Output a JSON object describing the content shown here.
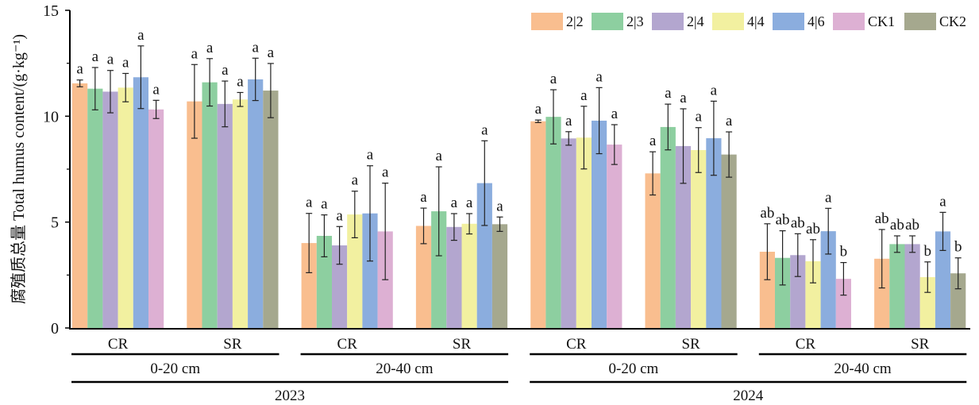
{
  "chart_data": {
    "type": "bar",
    "title": "",
    "ylabel": "腐殖质总量 Total humus content/(g·kg⁻¹)",
    "xlabel": "",
    "ylim": [
      0,
      15
    ],
    "yticks": [
      0,
      5,
      10,
      15
    ],
    "yticks_minor": [
      2.5,
      7.5,
      12.5
    ],
    "grid": false,
    "legend_position": "top-right",
    "legend": [
      {
        "name": "2|2",
        "color": "#F9BE8F"
      },
      {
        "name": "2|3",
        "color": "#8DCFA0"
      },
      {
        "name": "2|4",
        "color": "#B3A6CF"
      },
      {
        "name": "4|4",
        "color": "#F2F0A0"
      },
      {
        "name": "4|6",
        "color": "#8BADDE"
      },
      {
        "name": "CK1",
        "color": "#DDB0D3"
      },
      {
        "name": "CK2",
        "color": "#A5A88E"
      }
    ],
    "groups": [
      {
        "year": "2023",
        "depth": "0-20 cm",
        "type": "CR",
        "bars": [
          {
            "series": "2|2",
            "value": 11.55,
            "err": 0.16,
            "letter": "a"
          },
          {
            "series": "2|3",
            "value": 11.3,
            "err": 1.0,
            "letter": "a"
          },
          {
            "series": "2|4",
            "value": 11.16,
            "err": 1.0,
            "letter": "a"
          },
          {
            "series": "4|4",
            "value": 11.35,
            "err": 0.67,
            "letter": "a"
          },
          {
            "series": "4|6",
            "value": 11.84,
            "err": 1.48,
            "letter": "a"
          },
          {
            "series": "CK1",
            "value": 10.32,
            "err": 0.43,
            "letter": "a"
          }
        ]
      },
      {
        "year": "2023",
        "depth": "0-20 cm",
        "type": "SR",
        "bars": [
          {
            "series": "2|2",
            "value": 10.7,
            "err": 1.74,
            "letter": "a"
          },
          {
            "series": "2|3",
            "value": 11.6,
            "err": 1.12,
            "letter": "a"
          },
          {
            "series": "2|4",
            "value": 10.58,
            "err": 1.08,
            "letter": "a"
          },
          {
            "series": "4|4",
            "value": 10.79,
            "err": 0.33,
            "letter": "a"
          },
          {
            "series": "4|6",
            "value": 11.74,
            "err": 1.0,
            "letter": "a"
          },
          {
            "series": "CK2",
            "value": 11.21,
            "err": 1.28,
            "letter": "a"
          }
        ]
      },
      {
        "year": "2023",
        "depth": "20-40 cm",
        "type": "CR",
        "bars": [
          {
            "series": "2|2",
            "value": 4.01,
            "err": 1.4,
            "letter": "a"
          },
          {
            "series": "2|3",
            "value": 4.35,
            "err": 0.99,
            "letter": "a"
          },
          {
            "series": "2|4",
            "value": 3.9,
            "err": 0.89,
            "letter": "a"
          },
          {
            "series": "4|4",
            "value": 5.36,
            "err": 1.1,
            "letter": "a"
          },
          {
            "series": "4|6",
            "value": 5.41,
            "err": 2.25,
            "letter": "a"
          },
          {
            "series": "CK1",
            "value": 4.56,
            "err": 2.28,
            "letter": "a"
          }
        ]
      },
      {
        "year": "2023",
        "depth": "20-40 cm",
        "type": "SR",
        "bars": [
          {
            "series": "2|2",
            "value": 4.82,
            "err": 0.84,
            "letter": "a"
          },
          {
            "series": "2|3",
            "value": 5.51,
            "err": 2.1,
            "letter": "a"
          },
          {
            "series": "2|4",
            "value": 4.77,
            "err": 0.63,
            "letter": "a"
          },
          {
            "series": "4|4",
            "value": 4.92,
            "err": 0.48,
            "letter": "a"
          },
          {
            "series": "4|6",
            "value": 6.84,
            "err": 2.0,
            "letter": "a"
          },
          {
            "series": "CK2",
            "value": 4.9,
            "err": 0.34,
            "letter": "a"
          }
        ]
      },
      {
        "year": "2024",
        "depth": "0-20 cm",
        "type": "CR",
        "bars": [
          {
            "series": "2|2",
            "value": 9.76,
            "err": 0.06,
            "letter": "a"
          },
          {
            "series": "2|3",
            "value": 9.97,
            "err": 1.28,
            "letter": "a"
          },
          {
            "series": "2|4",
            "value": 8.95,
            "err": 0.32,
            "letter": "a"
          },
          {
            "series": "4|4",
            "value": 8.99,
            "err": 1.48,
            "letter": "a"
          },
          {
            "series": "4|6",
            "value": 9.79,
            "err": 1.56,
            "letter": "a"
          },
          {
            "series": "CK1",
            "value": 8.66,
            "err": 0.94,
            "letter": "a"
          }
        ]
      },
      {
        "year": "2024",
        "depth": "0-20 cm",
        "type": "SR",
        "bars": [
          {
            "series": "2|2",
            "value": 7.3,
            "err": 1.02,
            "letter": "a"
          },
          {
            "series": "2|3",
            "value": 9.49,
            "err": 1.08,
            "letter": "a"
          },
          {
            "series": "2|4",
            "value": 8.59,
            "err": 1.76,
            "letter": "a"
          },
          {
            "series": "4|4",
            "value": 8.4,
            "err": 1.06,
            "letter": "a"
          },
          {
            "series": "4|6",
            "value": 8.96,
            "err": 1.75,
            "letter": "a"
          },
          {
            "series": "CK2",
            "value": 8.19,
            "err": 1.07,
            "letter": "a"
          }
        ]
      },
      {
        "year": "2024",
        "depth": "20-40 cm",
        "type": "CR",
        "bars": [
          {
            "series": "2|2",
            "value": 3.6,
            "err": 1.32,
            "letter": "ab"
          },
          {
            "series": "2|3",
            "value": 3.31,
            "err": 1.28,
            "letter": "ab"
          },
          {
            "series": "2|4",
            "value": 3.44,
            "err": 1.01,
            "letter": "ab"
          },
          {
            "series": "4|4",
            "value": 3.15,
            "err": 1.02,
            "letter": "ab"
          },
          {
            "series": "4|6",
            "value": 4.57,
            "err": 1.08,
            "letter": "a"
          },
          {
            "series": "CK1",
            "value": 2.32,
            "err": 0.77,
            "letter": "b"
          }
        ]
      },
      {
        "year": "2024",
        "depth": "20-40 cm",
        "type": "SR",
        "bars": [
          {
            "series": "2|2",
            "value": 3.27,
            "err": 1.38,
            "letter": "ab"
          },
          {
            "series": "2|3",
            "value": 3.96,
            "err": 0.39,
            "letter": "ab"
          },
          {
            "series": "2|4",
            "value": 3.96,
            "err": 0.39,
            "letter": "ab"
          },
          {
            "series": "4|4",
            "value": 2.4,
            "err": 0.72,
            "letter": "b"
          },
          {
            "series": "4|6",
            "value": 4.56,
            "err": 0.9,
            "letter": "a"
          },
          {
            "series": "CK2",
            "value": 2.58,
            "err": 0.73,
            "letter": "b"
          }
        ]
      }
    ],
    "depth_labels": [
      {
        "label": "0-20 cm",
        "span": [
          0,
          1
        ]
      },
      {
        "label": "20-40 cm",
        "span": [
          2,
          3
        ]
      },
      {
        "label": "0-20 cm",
        "span": [
          4,
          5
        ]
      },
      {
        "label": "20-40 cm",
        "span": [
          6,
          7
        ]
      }
    ],
    "year_labels": [
      {
        "label": "2023",
        "span": [
          0,
          3
        ]
      },
      {
        "label": "2024",
        "span": [
          4,
          7
        ]
      }
    ]
  }
}
